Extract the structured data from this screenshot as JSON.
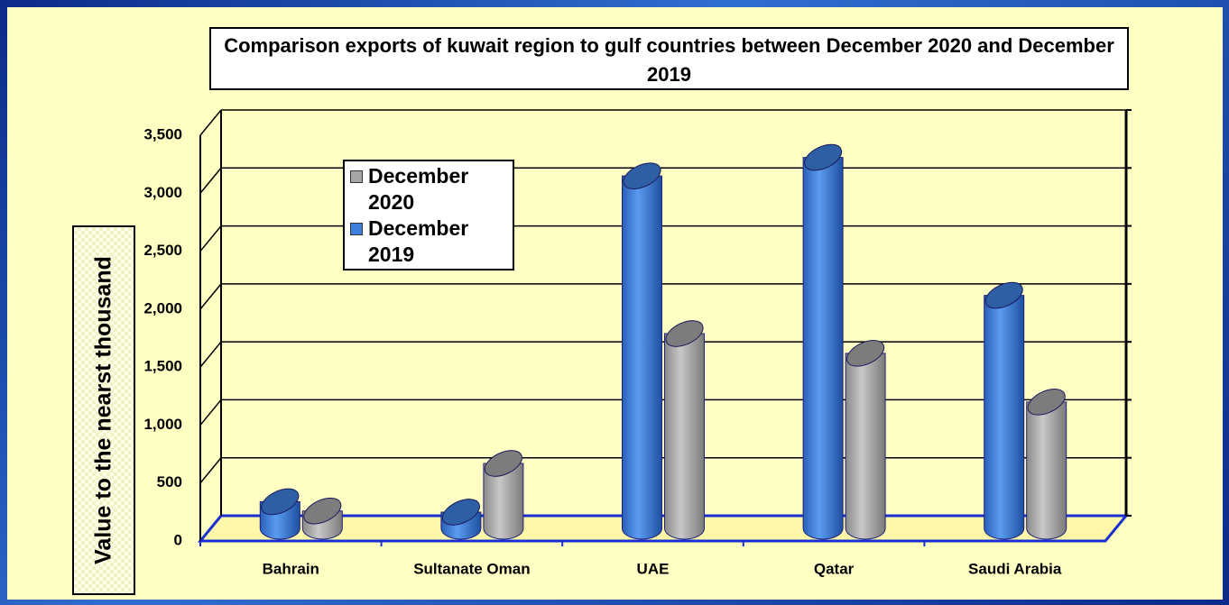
{
  "chart_data": {
    "type": "bar",
    "title": "Comparison exports of kuwait region to gulf countries between December 2020 and December 2019",
    "y_label": "Value to the nearst thousand",
    "categories": [
      "Bahrain",
      "Sultanate Oman",
      "UAE",
      "Qatar",
      "Saudi Arabia"
    ],
    "series": [
      {
        "name": "December 2019",
        "color": "#3d7fdc",
        "values": [
          230,
          140,
          3040,
          3200,
          2010
        ]
      },
      {
        "name": "December 2020",
        "color": "#a6a6a6",
        "values": [
          150,
          560,
          1680,
          1510,
          1090
        ]
      }
    ],
    "ylim": [
      0,
      3500
    ],
    "yticks": [
      0,
      500,
      {
        "value": 1000,
        "label": "1,000"
      },
      {
        "value": 1500,
        "label": "1,500"
      },
      {
        "value": 2000,
        "label": "2,000"
      },
      {
        "value": 2500,
        "label": "2,500"
      },
      {
        "value": 3000,
        "label": "3,000"
      },
      {
        "value": 3500,
        "label": "3,500"
      }
    ],
    "grid": true,
    "legend": "upper left"
  }
}
